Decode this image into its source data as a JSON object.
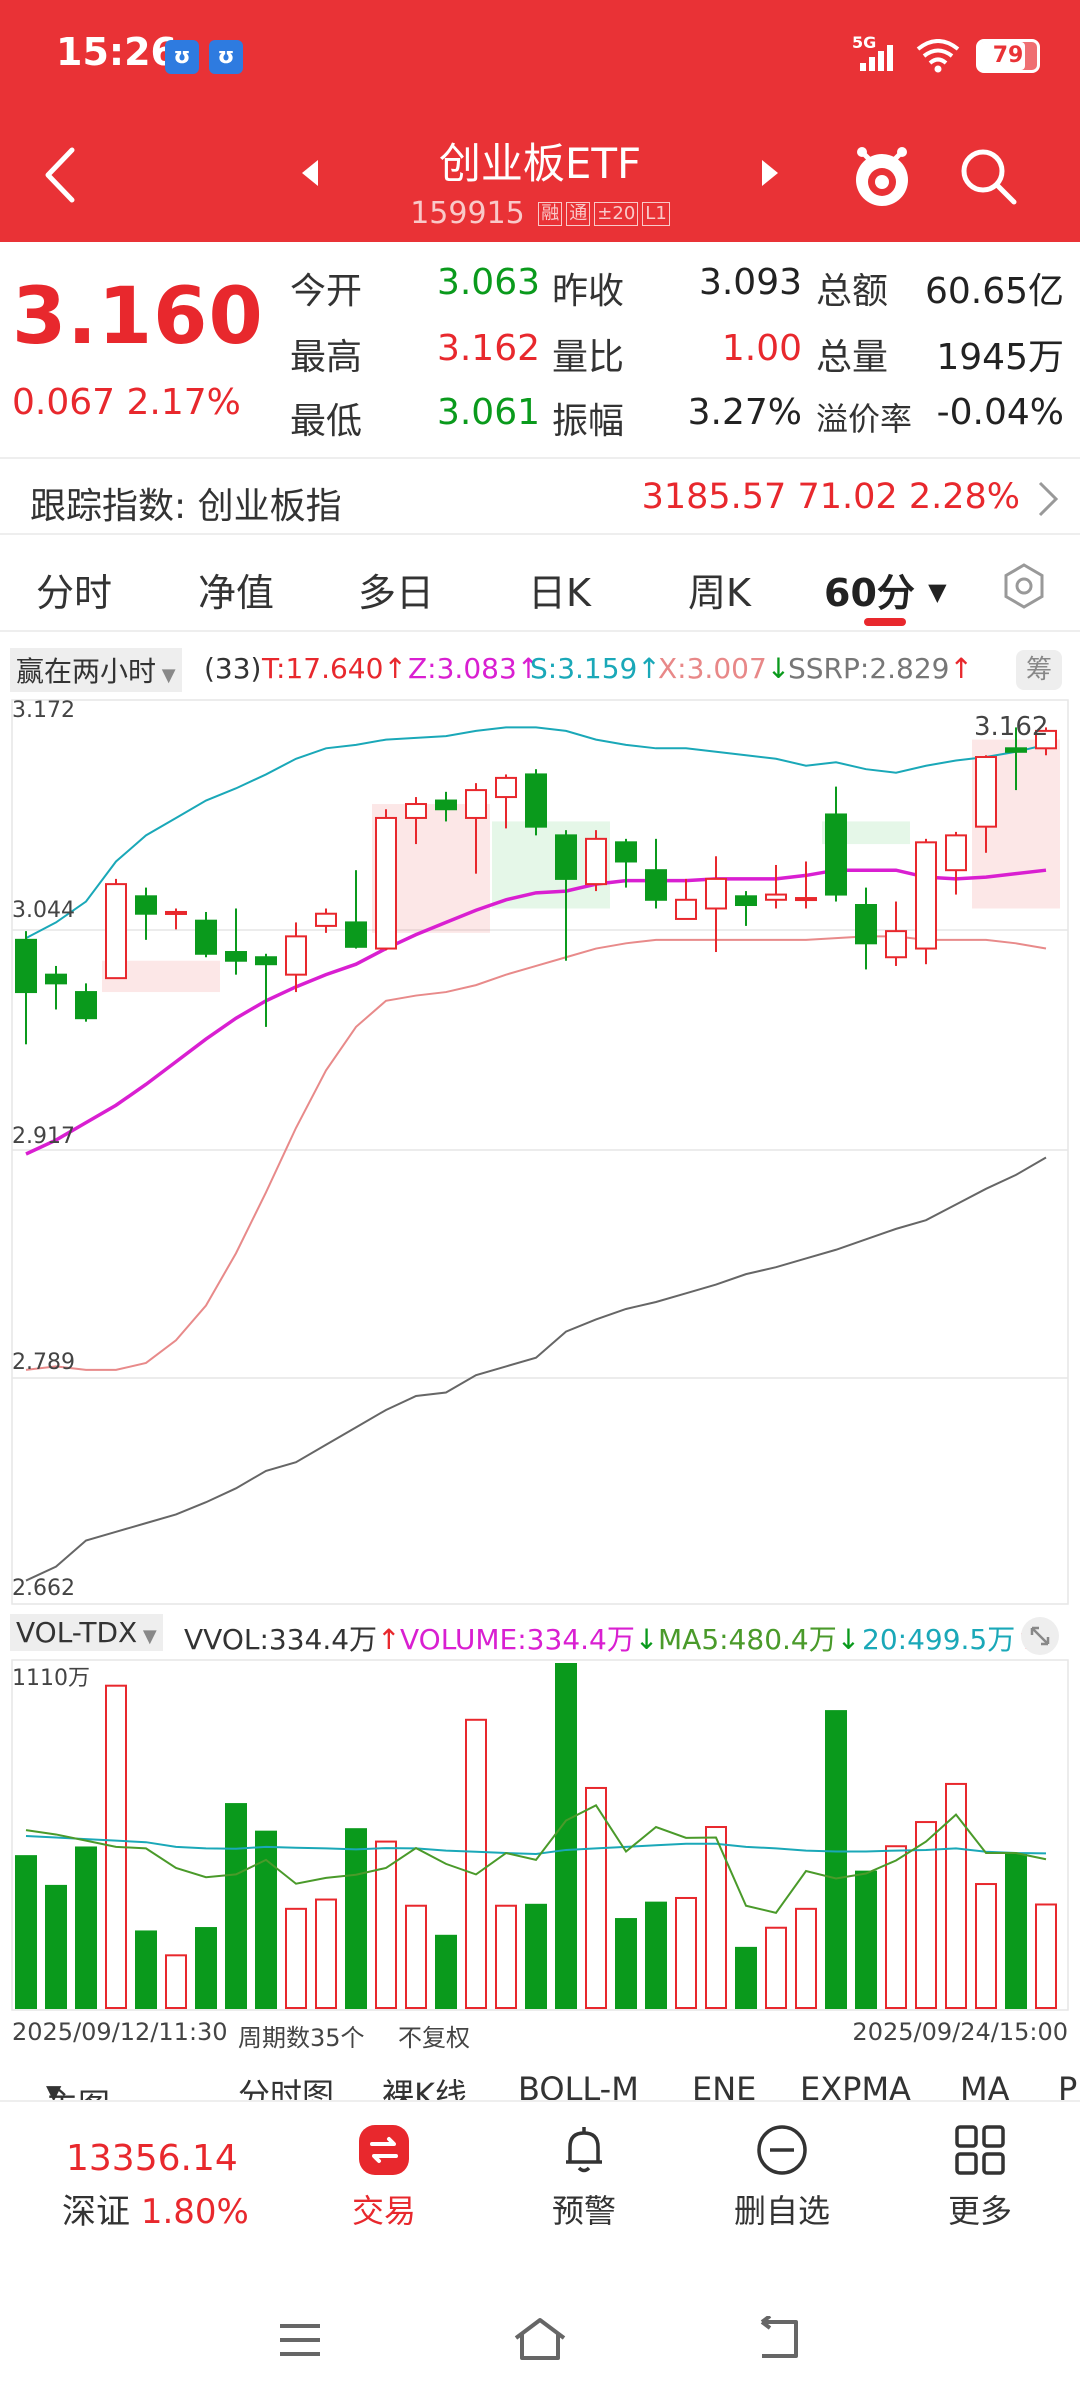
{
  "status": {
    "time": "15:26",
    "badges": [
      "ʊ",
      "ʊ"
    ],
    "network": "5G",
    "battery": "79",
    "battery_level": 0.79
  },
  "header": {
    "title": "创业板ETF",
    "code": "159915",
    "tags": [
      "融",
      "通",
      "±20",
      "L1"
    ]
  },
  "quote": {
    "price": "3.160",
    "change": "0.067 2.17%",
    "labels": [
      "今开",
      "最高",
      "最低",
      "昨收",
      "量比",
      "振幅",
      "总额",
      "总量",
      "溢价率"
    ],
    "open": "3.063",
    "high": "3.162",
    "low": "3.061",
    "prev_close": "3.093",
    "vol_ratio": "1.00",
    "amplitude": "3.27%",
    "turnover": "60.65亿",
    "volume": "1945万",
    "premium": "-0.04%"
  },
  "tracking": {
    "label": "跟踪指数: 创业板指",
    "value": "3185.57",
    "change": "71.02",
    "pct": "2.28%"
  },
  "tabs": [
    "分时",
    "净值",
    "多日",
    "日K",
    "周K",
    "60分"
  ],
  "chart_top": {
    "indicator_name": "赢在两小时",
    "count": "(33)",
    "t": "T:17.640",
    "z": "Z:3.083",
    "s": "S:3.159",
    "x": "X:3.007",
    "ssrp": "SSRP:2.829",
    "chip_label": "筹",
    "y_labels": [
      "3.172",
      "3.044",
      "2.917",
      "2.789",
      "2.662"
    ],
    "high_mark": "3.162"
  },
  "chart_vol": {
    "indicator_name": "VOL-TDX",
    "vvol": "VVOL:334.4万",
    "volume": "VOLUME:334.4万",
    "ma5": "MA5:480.4万",
    "ma20": "20:499.5万",
    "y_label": "1110万"
  },
  "date_row": {
    "start": "2025/09/12/11:30",
    "periods": "周期数35个",
    "adjust": "不复权",
    "end": "2025/09/24/15:00"
  },
  "indicator_tabs": [
    "主图",
    "分时图",
    "裸K线",
    "BOLL-M",
    "ENE",
    "EXPMA",
    "MA",
    "P"
  ],
  "bottom_nav": {
    "sz_value": "13356.14",
    "sz_label": "深证",
    "sz_pct": "1.80%",
    "items": [
      "交易",
      "预警",
      "删自选",
      "更多"
    ]
  },
  "colors": {
    "header": "#e93236",
    "up": "#e8282d",
    "down": "#0a9a1c",
    "magenta": "#d91fd1",
    "teal": "#1aa8b8"
  },
  "chart_data": {
    "type": "candlestick",
    "ylim": [
      2.662,
      3.172
    ],
    "candles": [
      [
        3.04,
        3.01,
        3.045,
        2.98
      ],
      [
        3.02,
        3.015,
        3.025,
        3.0
      ],
      [
        3.01,
        2.995,
        3.015,
        2.993
      ],
      [
        3.018,
        3.072,
        3.075,
        3.018
      ],
      [
        3.065,
        3.055,
        3.07,
        3.04
      ],
      [
        3.055,
        3.056,
        3.058,
        3.046
      ],
      [
        3.051,
        3.032,
        3.056,
        3.03
      ],
      [
        3.033,
        3.028,
        3.058,
        3.02
      ],
      [
        3.03,
        3.026,
        3.032,
        2.99
      ],
      [
        3.02,
        3.042,
        3.05,
        3.01
      ],
      [
        3.048,
        3.055,
        3.058,
        3.044
      ],
      [
        3.05,
        3.036,
        3.08,
        3.035
      ],
      [
        3.035,
        3.11,
        3.115,
        3.034
      ],
      [
        3.11,
        3.118,
        3.122,
        3.095
      ],
      [
        3.12,
        3.115,
        3.125,
        3.108
      ],
      [
        3.11,
        3.126,
        3.13,
        3.078
      ],
      [
        3.122,
        3.133,
        3.135,
        3.104
      ],
      [
        3.135,
        3.105,
        3.138,
        3.1
      ],
      [
        3.1,
        3.075,
        3.103,
        3.028
      ],
      [
        3.072,
        3.098,
        3.103,
        3.068
      ],
      [
        3.096,
        3.085,
        3.098,
        3.07
      ],
      [
        3.08,
        3.063,
        3.098,
        3.058
      ],
      [
        3.052,
        3.063,
        3.075,
        3.052
      ],
      [
        3.058,
        3.075,
        3.088,
        3.033
      ],
      [
        3.065,
        3.06,
        3.068,
        3.048
      ],
      [
        3.063,
        3.066,
        3.083,
        3.058
      ],
      [
        3.063,
        3.064,
        3.085,
        3.058
      ],
      [
        3.112,
        3.066,
        3.128,
        3.062
      ],
      [
        3.06,
        3.038,
        3.07,
        3.023
      ],
      [
        3.03,
        3.045,
        3.062,
        3.025
      ],
      [
        3.035,
        3.096,
        3.098,
        3.026
      ],
      [
        3.08,
        3.1,
        3.102,
        3.066
      ],
      [
        3.105,
        3.145,
        3.146,
        3.09
      ],
      [
        3.15,
        3.148,
        3.162,
        3.126
      ],
      [
        3.15,
        3.16,
        3.162,
        3.146
      ]
    ],
    "upper_band": [
      3.041,
      3.05,
      3.062,
      3.085,
      3.1,
      3.11,
      3.12,
      3.127,
      3.135,
      3.144,
      3.15,
      3.152,
      3.155,
      3.156,
      3.157,
      3.16,
      3.162,
      3.162,
      3.16,
      3.155,
      3.152,
      3.15,
      3.15,
      3.148,
      3.146,
      3.144,
      3.14,
      3.142,
      3.138,
      3.136,
      3.14,
      3.143,
      3.145,
      3.148,
      3.152
    ],
    "mid_line": [
      2.917,
      2.925,
      2.935,
      2.945,
      2.957,
      2.97,
      2.983,
      2.995,
      3.005,
      3.013,
      3.02,
      3.026,
      3.035,
      3.043,
      3.05,
      3.057,
      3.063,
      3.067,
      3.068,
      3.072,
      3.074,
      3.074,
      3.074,
      3.075,
      3.075,
      3.075,
      3.077,
      3.08,
      3.08,
      3.08,
      3.076,
      3.075,
      3.076,
      3.078,
      3.08
    ],
    "lower_band": [
      2.793,
      2.795,
      2.793,
      2.793,
      2.797,
      2.81,
      2.83,
      2.86,
      2.895,
      2.932,
      2.965,
      2.99,
      3.005,
      3.008,
      3.01,
      3.014,
      3.02,
      3.025,
      3.03,
      3.035,
      3.038,
      3.04,
      3.04,
      3.04,
      3.04,
      3.04,
      3.04,
      3.041,
      3.042,
      3.042,
      3.04,
      3.04,
      3.04,
      3.038,
      3.035
    ],
    "ssrp_line": [
      2.672,
      2.68,
      2.695,
      2.7,
      2.705,
      2.71,
      2.717,
      2.725,
      2.735,
      2.74,
      2.75,
      2.76,
      2.77,
      2.778,
      2.78,
      2.79,
      2.795,
      2.8,
      2.815,
      2.822,
      2.828,
      2.832,
      2.837,
      2.842,
      2.848,
      2.852,
      2.857,
      2.862,
      2.868,
      2.874,
      2.879,
      2.888,
      2.897,
      2.905,
      2.915
    ],
    "volume_ymax": 1110,
    "volume": [
      490,
      394,
      518,
      1040,
      247,
      170,
      258,
      658,
      569,
      320,
      350,
      577,
      537,
      330,
      233,
      930,
      330,
      333,
      1110,
      710,
      287,
      340,
      355,
      584,
      194,
      259,
      320,
      958,
      440,
      522,
      600,
      723,
      400,
      495,
      334
    ],
    "vol_ma5": [
      574,
      560,
      540,
      520,
      515,
      452,
      422,
      431,
      478,
      401,
      420,
      430,
      452,
      516,
      465,
      431,
      500,
      478,
      605,
      654,
      505,
      584,
      549,
      550,
      330,
      307,
      442,
      418,
      434,
      476,
      537,
      624,
      500,
      500,
      480
    ],
    "vol_ma20": [
      555,
      550,
      545,
      540,
      535,
      520,
      515,
      514,
      520,
      517,
      515,
      512,
      516,
      515,
      508,
      504,
      500,
      497,
      510,
      515,
      520,
      525,
      530,
      530,
      520,
      515,
      508,
      505,
      505,
      508,
      510,
      515,
      504,
      500,
      499
    ]
  }
}
